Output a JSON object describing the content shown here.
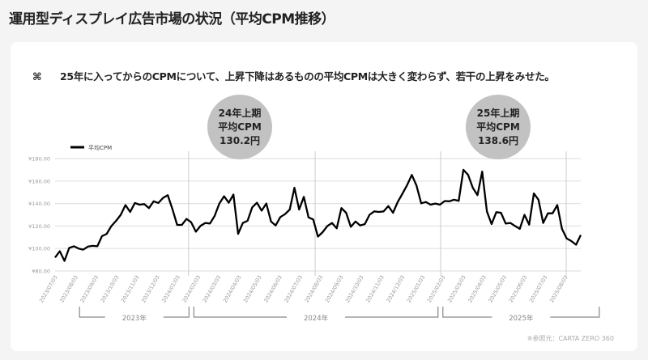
{
  "title": "運用型ディスプレイ広告市場の状況（平均CPM推移）",
  "note": {
    "mark": "⌘",
    "text": "25年に入ってからのCPMについて、上昇下降はあるものの平均CPMは大きく変わらず、若干の上昇をみせた。"
  },
  "bubbles": [
    {
      "line1": "24年上期",
      "line2": "平均CPM",
      "line3": "130.2円"
    },
    {
      "line1": "25年上期",
      "line2": "平均CPM",
      "line3": "138.6円"
    }
  ],
  "source": "※参照元：CARTA ZERO 360",
  "chart_data": {
    "type": "line",
    "title": "",
    "legend": [
      "平均CPM"
    ],
    "legend_position": "top-left",
    "ylim": [
      80,
      180
    ],
    "yticks": [
      "¥80.00",
      "¥100.00",
      "¥120.00",
      "¥140.00",
      "¥160.00",
      "¥180.00"
    ],
    "ytick_values": [
      80,
      100,
      120,
      140,
      160,
      180
    ],
    "xticks": [
      "2023/07/03",
      "2023/08/03",
      "2023/09/03",
      "2023/10/03",
      "2023/11/03",
      "2023/12/03",
      "2024/01/03",
      "2024/02/03",
      "2024/03/03",
      "2024/04/03",
      "2024/05/03",
      "2024/06/03",
      "2024/07/03",
      "2024/08/03",
      "2024/09/03",
      "2024/10/03",
      "2024/11/03",
      "2024/12/03",
      "2025/01/03",
      "2025/02/03",
      "2025/03/03",
      "2025/04/03",
      "2025/05/03",
      "2025/06/03",
      "2025/07/03",
      "2025/08/03"
    ],
    "year_groups": [
      {
        "label": "2023年",
        "from_tick": 1,
        "to_tick": 6.6
      },
      {
        "label": "2024年",
        "from_tick": 6.6,
        "to_tick": 18.8
      },
      {
        "label": "2025年",
        "from_tick": 18.8,
        "to_tick": 26.7
      }
    ],
    "dividers_at_tick": [
      6.5,
      12.7,
      18.85,
      25
    ],
    "grid": true,
    "series": [
      {
        "name": "平均CPM",
        "values": [
          92,
          97.6,
          89,
          100.5,
          102,
          100,
          99,
          101.7,
          102.4,
          102,
          111,
          113,
          120,
          124.6,
          130,
          138.6,
          132.5,
          140.5,
          139,
          139.5,
          136,
          142,
          140.5,
          145,
          147.5,
          135,
          121,
          121,
          126.3,
          123.4,
          115,
          120.2,
          122.7,
          122.2,
          129,
          140,
          146.5,
          140.7,
          148,
          113,
          122.7,
          124.6,
          136.6,
          140.7,
          133.7,
          140,
          124,
          120.5,
          128,
          130.6,
          134.7,
          154,
          134.7,
          146,
          127.7,
          125.8,
          110.6,
          114.5,
          120,
          122.7,
          118,
          136,
          131.8,
          119.3,
          124,
          120.5,
          121.7,
          130,
          133,
          132.5,
          133,
          137.8,
          131.8,
          141.4,
          148.7,
          156.4,
          165.5,
          156,
          140.2,
          141.4,
          139,
          140,
          139,
          142.2,
          142,
          143.4,
          142.4,
          170,
          165.5,
          154,
          147.5,
          168.4,
          133,
          121.7,
          132.3,
          131.8,
          122.2,
          122.7,
          120,
          117.5,
          130,
          121.2,
          149,
          143.4,
          122.7,
          131.3,
          131.3,
          138.6,
          117.5,
          109,
          106.6,
          103.4,
          112
        ]
      }
    ]
  }
}
